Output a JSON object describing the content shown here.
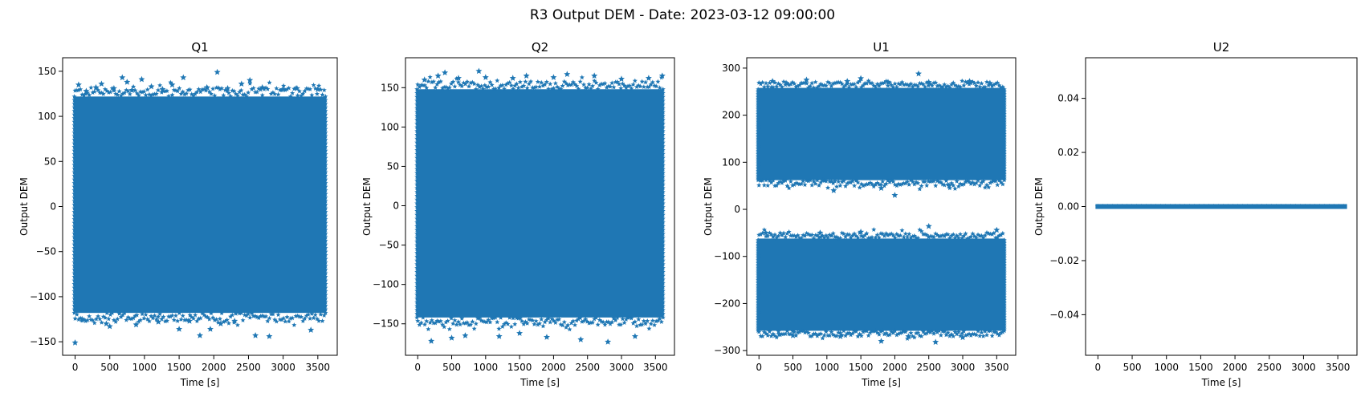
{
  "figure": {
    "title": "R3 Output DEM - Date: 2023-03-12 09:00:00"
  },
  "colors": {
    "marker": "#1f77b4",
    "axes": "#000000",
    "background": "#ffffff"
  },
  "chart_data": [
    {
      "type": "scatter",
      "title": "Q1",
      "xlabel": "Time [s]",
      "ylabel": "Output DEM",
      "marker": "star",
      "grid": false,
      "xlim": [
        -180,
        3780
      ],
      "ylim": [
        -165,
        165
      ],
      "xticks": [
        0,
        500,
        1000,
        1500,
        2000,
        2500,
        3000,
        3500
      ],
      "xtick_labels": [
        "0",
        "500",
        "1000",
        "1500",
        "2000",
        "2500",
        "3000",
        "3500"
      ],
      "yticks": [
        -150,
        -100,
        -50,
        0,
        50,
        100,
        150
      ],
      "ytick_labels": [
        "−150",
        "−100",
        "−50",
        "0",
        "50",
        "100",
        "150"
      ],
      "x_range": [
        0,
        3600
      ],
      "bands": [
        {
          "core": [
            -118,
            122
          ],
          "spread": 10
        }
      ],
      "outliers": [
        [
          0,
          -151
        ],
        [
          50,
          135
        ],
        [
          100,
          -125
        ],
        [
          160,
          128
        ],
        [
          300,
          132
        ],
        [
          380,
          136
        ],
        [
          450,
          -130
        ],
        [
          500,
          -133
        ],
        [
          560,
          131
        ],
        [
          680,
          143
        ],
        [
          750,
          138
        ],
        [
          820,
          129
        ],
        [
          880,
          -131
        ],
        [
          960,
          141
        ],
        [
          1100,
          133
        ],
        [
          1200,
          -128
        ],
        [
          1260,
          130
        ],
        [
          1400,
          135
        ],
        [
          1500,
          -136
        ],
        [
          1560,
          143
        ],
        [
          1650,
          -127
        ],
        [
          1800,
          -143
        ],
        [
          1900,
          132
        ],
        [
          1950,
          -136
        ],
        [
          2050,
          149
        ],
        [
          2100,
          -130
        ],
        [
          2200,
          131
        ],
        [
          2300,
          -127
        ],
        [
          2400,
          136
        ],
        [
          2520,
          140
        ],
        [
          2600,
          -143
        ],
        [
          2700,
          132
        ],
        [
          2800,
          -144
        ],
        [
          3000,
          130
        ],
        [
          3200,
          131
        ],
        [
          3400,
          -137
        ],
        [
          3500,
          130
        ]
      ]
    },
    {
      "type": "scatter",
      "title": "Q2",
      "xlabel": "Time [s]",
      "ylabel": "Output DEM",
      "marker": "star",
      "grid": false,
      "xlim": [
        -180,
        3780
      ],
      "ylim": [
        -190,
        188
      ],
      "xticks": [
        0,
        500,
        1000,
        1500,
        2000,
        2500,
        3000,
        3500
      ],
      "xtick_labels": [
        "0",
        "500",
        "1000",
        "1500",
        "2000",
        "2500",
        "3000",
        "3500"
      ],
      "yticks": [
        -150,
        -100,
        -50,
        0,
        50,
        100,
        150
      ],
      "ytick_labels": [
        "−150",
        "−100",
        "−50",
        "0",
        "50",
        "100",
        "150"
      ],
      "x_range": [
        0,
        3600
      ],
      "bands": [
        {
          "core": [
            -142,
            148
          ],
          "spread": 10
        }
      ],
      "outliers": [
        [
          100,
          160
        ],
        [
          200,
          -172
        ],
        [
          300,
          165
        ],
        [
          400,
          169
        ],
        [
          500,
          -168
        ],
        [
          600,
          162
        ],
        [
          700,
          -165
        ],
        [
          900,
          171
        ],
        [
          1000,
          163
        ],
        [
          1200,
          -166
        ],
        [
          1400,
          162
        ],
        [
          1500,
          -162
        ],
        [
          1600,
          165
        ],
        [
          1900,
          -167
        ],
        [
          2000,
          163
        ],
        [
          2200,
          167
        ],
        [
          2400,
          -170
        ],
        [
          2600,
          165
        ],
        [
          2800,
          -173
        ],
        [
          3000,
          161
        ],
        [
          3200,
          -166
        ],
        [
          3400,
          162
        ],
        [
          3600,
          165
        ]
      ]
    },
    {
      "type": "scatter",
      "title": "U1",
      "xlabel": "Time [s]",
      "ylabel": "Output DEM",
      "marker": "star",
      "grid": false,
      "xlim": [
        -180,
        3780
      ],
      "ylim": [
        -310,
        322
      ],
      "xticks": [
        0,
        500,
        1000,
        1500,
        2000,
        2500,
        3000,
        3500
      ],
      "xtick_labels": [
        "0",
        "500",
        "1000",
        "1500",
        "2000",
        "2500",
        "3000",
        "3500"
      ],
      "yticks": [
        -300,
        -200,
        -100,
        0,
        100,
        200,
        300
      ],
      "ytick_labels": [
        "−300",
        "−200",
        "−100",
        "0",
        "100",
        "200",
        "300"
      ],
      "x_range": [
        0,
        3600
      ],
      "bands": [
        {
          "core": [
            62,
            258
          ],
          "spread": 12
        },
        {
          "core": [
            -258,
            -62
          ],
          "spread": 12
        }
      ],
      "outliers": [
        [
          200,
          272
        ],
        [
          400,
          268
        ],
        [
          700,
          275
        ],
        [
          1100,
          40
        ],
        [
          1300,
          272
        ],
        [
          1500,
          278
        ],
        [
          1800,
          45
        ],
        [
          1900,
          270
        ],
        [
          2000,
          30
        ],
        [
          2350,
          288
        ],
        [
          2500,
          270
        ],
        [
          2800,
          50
        ],
        [
          3100,
          272
        ],
        [
          3400,
          268
        ],
        [
          100,
          -50
        ],
        [
          300,
          -265
        ],
        [
          500,
          -268
        ],
        [
          900,
          -50
        ],
        [
          1200,
          -270
        ],
        [
          1500,
          -48
        ],
        [
          1800,
          -280
        ],
        [
          2200,
          -270
        ],
        [
          2500,
          -36
        ],
        [
          2600,
          -282
        ],
        [
          3000,
          -272
        ],
        [
          3500,
          -44
        ]
      ]
    },
    {
      "type": "scatter",
      "title": "U2",
      "xlabel": "Time [s]",
      "ylabel": "Output DEM",
      "marker": "star",
      "grid": false,
      "xlim": [
        -180,
        3780
      ],
      "ylim": [
        -0.055,
        0.055
      ],
      "xticks": [
        0,
        500,
        1000,
        1500,
        2000,
        2500,
        3000,
        3500
      ],
      "xtick_labels": [
        "0",
        "500",
        "1000",
        "1500",
        "2000",
        "2500",
        "3000",
        "3500"
      ],
      "yticks": [
        -0.04,
        -0.02,
        0.0,
        0.02,
        0.04
      ],
      "ytick_labels": [
        "−0.04",
        "−0.02",
        "0.00",
        "0.02",
        "0.04"
      ],
      "x_range": [
        0,
        3600
      ],
      "line_value": 0.0
    }
  ]
}
